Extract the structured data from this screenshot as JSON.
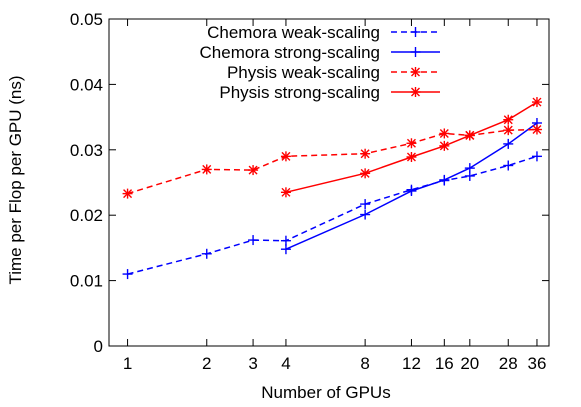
{
  "chart_data": {
    "type": "line",
    "xlabel": "Number of GPUs",
    "ylabel": "Time per Flop per GPU (ns)",
    "xscale": "log",
    "xlim": [
      0.85,
      40
    ],
    "ylim": [
      0,
      0.05
    ],
    "x_ticks": [
      1,
      2,
      3,
      4,
      8,
      12,
      16,
      20,
      28,
      36
    ],
    "x_tick_labels": [
      "1",
      "2",
      "3",
      "4",
      "8",
      "12",
      "16",
      "20",
      "28",
      "36"
    ],
    "y_ticks": [
      0,
      0.01,
      0.02,
      0.03,
      0.04,
      0.05
    ],
    "y_tick_labels": [
      "0",
      "0.01",
      "0.02",
      "0.03",
      "0.04",
      "0.05"
    ],
    "grid": false,
    "legend_position": "top-right",
    "series": [
      {
        "name": "Chemora weak-scaling",
        "color": "#0000ff",
        "dash": true,
        "marker": "plus",
        "x": [
          1,
          2,
          3,
          4,
          8,
          12,
          16,
          20,
          28,
          36
        ],
        "y": [
          0.011,
          0.0141,
          0.0162,
          0.0161,
          0.0217,
          0.0239,
          0.0253,
          0.026,
          0.0276,
          0.029
        ]
      },
      {
        "name": "Chemora strong-scaling",
        "color": "#0000ff",
        "dash": false,
        "marker": "plus",
        "x": [
          4,
          8,
          12,
          16,
          20,
          28,
          36
        ],
        "y": [
          0.0148,
          0.0201,
          0.0237,
          0.0254,
          0.0272,
          0.0309,
          0.0341
        ]
      },
      {
        "name": "Physis weak-scaling",
        "color": "#ff0000",
        "dash": true,
        "marker": "star",
        "x": [
          1,
          2,
          3,
          4,
          8,
          12,
          16,
          20,
          28,
          36
        ],
        "y": [
          0.0233,
          0.027,
          0.0269,
          0.029,
          0.0294,
          0.031,
          0.0325,
          0.0322,
          0.033,
          0.0331
        ]
      },
      {
        "name": "Physis strong-scaling",
        "color": "#ff0000",
        "dash": false,
        "marker": "star",
        "x": [
          4,
          8,
          12,
          16,
          20,
          28,
          36
        ],
        "y": [
          0.0235,
          0.0264,
          0.0289,
          0.0306,
          0.0322,
          0.0346,
          0.0373
        ]
      }
    ]
  }
}
